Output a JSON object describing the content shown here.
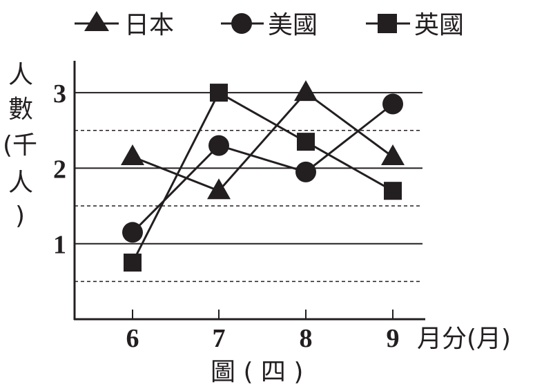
{
  "chart_data": {
    "type": "line",
    "title": "",
    "caption": "圖 ( 四 )",
    "xlabel": "月分(月)",
    "ylabel_line1": "人",
    "ylabel_line2": "數",
    "ylabel_line3": "(千",
    "ylabel_line4": "人",
    "ylabel_line5": ")",
    "categories": [
      "6",
      "7",
      "8",
      "9"
    ],
    "x": [
      6,
      7,
      8,
      9
    ],
    "ylim": [
      0,
      3.5
    ],
    "yticks": [
      1,
      2,
      3
    ],
    "ytick_labels": [
      "1",
      "2",
      "3"
    ],
    "dashed_grid": [
      0.5,
      1.5,
      2.5
    ],
    "legend_position": "top",
    "series": [
      {
        "name": "日本",
        "marker": "triangle",
        "values": [
          2.15,
          1.7,
          3.0,
          2.15
        ]
      },
      {
        "name": "美國",
        "marker": "circle",
        "values": [
          1.15,
          2.3,
          1.95,
          2.85
        ]
      },
      {
        "name": "英國",
        "marker": "square",
        "values": [
          0.75,
          3.0,
          2.35,
          1.7
        ]
      }
    ],
    "line_color": "#231f20"
  }
}
